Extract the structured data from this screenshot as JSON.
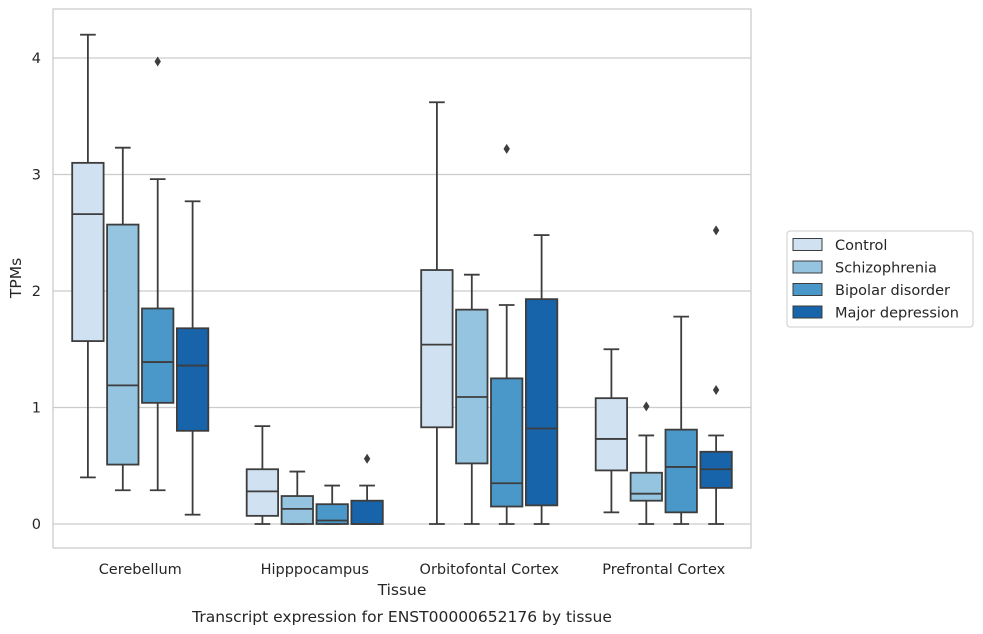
{
  "chart_data": {
    "type": "box",
    "caption": "Transcript expression for ENST00000652176 by tissue",
    "xlabel": "Tissue",
    "ylabel": "TPMs",
    "ylim": [
      -0.2,
      4.42
    ],
    "yticks": [
      0,
      1,
      2,
      3,
      4
    ],
    "grid": "horizontal",
    "legend_position": "right",
    "categories": [
      "Cerebellum",
      "Hipppocampus",
      "Orbitofontal Cortex",
      "Prefrontal Cortex"
    ],
    "series": [
      {
        "name": "Control",
        "color": "#d0e1f2",
        "boxes": [
          {
            "whislo": 0.4,
            "q1": 1.57,
            "med": 2.66,
            "q3": 3.1,
            "whishi": 4.2,
            "fliers": []
          },
          {
            "whislo": 0.0,
            "q1": 0.07,
            "med": 0.28,
            "q3": 0.47,
            "whishi": 0.84,
            "fliers": []
          },
          {
            "whislo": 0.0,
            "q1": 0.83,
            "med": 1.54,
            "q3": 2.18,
            "whishi": 3.62,
            "fliers": []
          },
          {
            "whislo": 0.1,
            "q1": 0.46,
            "med": 0.73,
            "q3": 1.08,
            "whishi": 1.5,
            "fliers": []
          }
        ]
      },
      {
        "name": "Schizophrenia",
        "color": "#94c4df",
        "boxes": [
          {
            "whislo": 0.29,
            "q1": 0.51,
            "med": 1.19,
            "q3": 2.57,
            "whishi": 3.23,
            "fliers": []
          },
          {
            "whislo": 0.0,
            "q1": 0.0,
            "med": 0.13,
            "q3": 0.24,
            "whishi": 0.45,
            "fliers": []
          },
          {
            "whislo": 0.0,
            "q1": 0.52,
            "med": 1.09,
            "q3": 1.84,
            "whishi": 2.14,
            "fliers": []
          },
          {
            "whislo": 0.0,
            "q1": 0.2,
            "med": 0.26,
            "q3": 0.44,
            "whishi": 0.76,
            "fliers": [
              1.01
            ]
          }
        ]
      },
      {
        "name": "Bipolar disorder",
        "color": "#4a98c9",
        "boxes": [
          {
            "whislo": 0.29,
            "q1": 1.04,
            "med": 1.39,
            "q3": 1.85,
            "whishi": 2.96,
            "fliers": [
              3.97
            ]
          },
          {
            "whislo": 0.0,
            "q1": 0.0,
            "med": 0.03,
            "q3": 0.17,
            "whishi": 0.33,
            "fliers": []
          },
          {
            "whislo": 0.0,
            "q1": 0.15,
            "med": 0.35,
            "q3": 1.25,
            "whishi": 1.88,
            "fliers": [
              3.22
            ]
          },
          {
            "whislo": 0.0,
            "q1": 0.1,
            "med": 0.49,
            "q3": 0.81,
            "whishi": 1.78,
            "fliers": []
          }
        ]
      },
      {
        "name": "Major depression",
        "color": "#1764ab",
        "boxes": [
          {
            "whislo": 0.08,
            "q1": 0.8,
            "med": 1.36,
            "q3": 1.68,
            "whishi": 2.77,
            "fliers": []
          },
          {
            "whislo": 0.0,
            "q1": 0.0,
            "med": 0.0,
            "q3": 0.2,
            "whishi": 0.33,
            "fliers": [
              0.56
            ]
          },
          {
            "whislo": 0.0,
            "q1": 0.16,
            "med": 0.82,
            "q3": 1.93,
            "whishi": 2.48,
            "fliers": []
          },
          {
            "whislo": 0.0,
            "q1": 0.31,
            "med": 0.47,
            "q3": 0.62,
            "whishi": 0.76,
            "fliers": [
              1.15,
              2.52
            ]
          }
        ]
      }
    ]
  }
}
